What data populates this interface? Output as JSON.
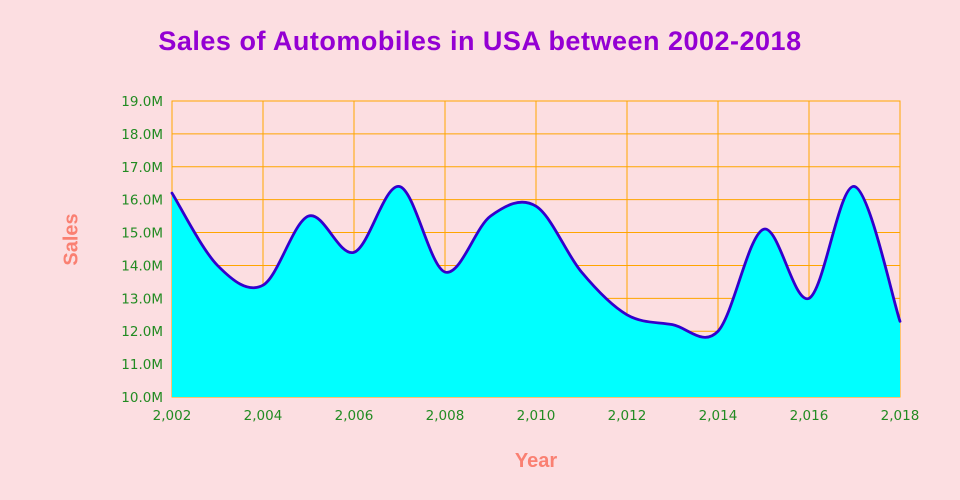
{
  "chart_data": {
    "type": "area",
    "title": "Sales of Automobiles in USA between 2002-2018",
    "xlabel": "Year",
    "ylabel": "Sales",
    "x": [
      2002,
      2003,
      2004,
      2005,
      2006,
      2007,
      2008,
      2009,
      2010,
      2011,
      2012,
      2013,
      2014,
      2015,
      2016,
      2017,
      2018
    ],
    "values": [
      16.2,
      14.0,
      13.4,
      15.5,
      14.4,
      16.4,
      13.8,
      15.5,
      15.8,
      13.8,
      12.5,
      12.2,
      12.0,
      15.1,
      13.0,
      16.4,
      12.3
    ],
    "unit": "M",
    "ylim": [
      10.0,
      19.0
    ],
    "yticks": [
      10,
      11,
      12,
      13,
      14,
      15,
      16,
      17,
      18,
      19
    ],
    "ytick_labels": [
      "10.0M",
      "11.0M",
      "12.0M",
      "13.0M",
      "14.0M",
      "15.0M",
      "16.0M",
      "17.0M",
      "18.0M",
      "19.0M"
    ],
    "xticks": [
      2002,
      2004,
      2006,
      2008,
      2010,
      2012,
      2014,
      2016,
      2018
    ],
    "xtick_labels": [
      "2,002",
      "2,004",
      "2,006",
      "2,008",
      "2,010",
      "2,012",
      "2,014",
      "2,016",
      "2,018"
    ],
    "grid": true,
    "legend": false
  },
  "colors": {
    "background": "#fcdee1",
    "title": "#9400d3",
    "axis_label": "#fa8072",
    "tick_label": "#228b22",
    "grid": "#ffa500",
    "area_fill": "#00ffff",
    "line": "#3300cc"
  }
}
